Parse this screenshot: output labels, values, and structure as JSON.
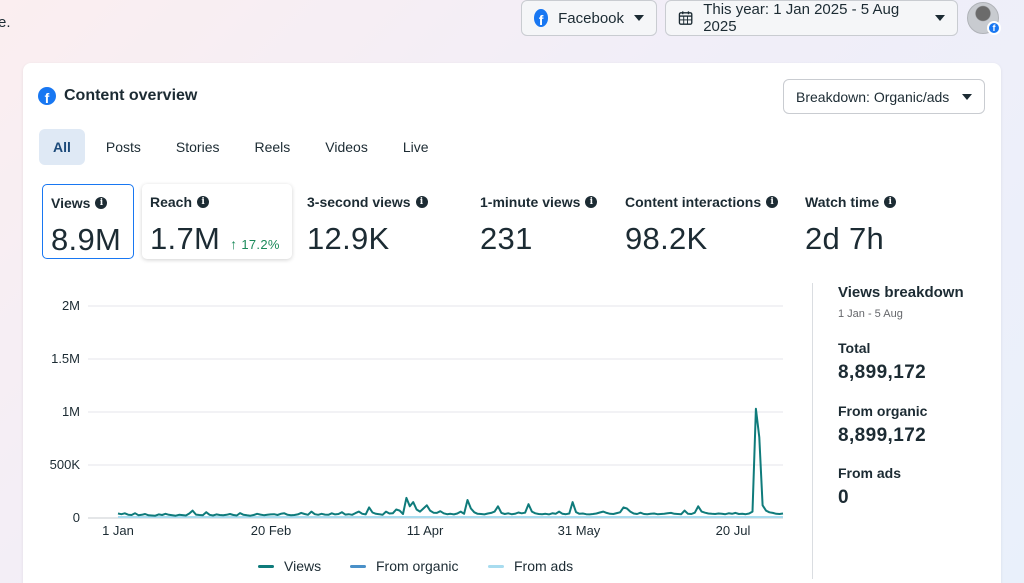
{
  "edge_text": "e.",
  "topbar": {
    "platform": {
      "label": "Facebook",
      "icon": "facebook-icon"
    },
    "date_range": {
      "label": "This year: 1 Jan 2025 - 5 Aug 2025",
      "icon": "calendar-icon"
    },
    "avatar": "profile-avatar"
  },
  "card": {
    "title": "Content overview",
    "breakdown_label": "Breakdown: Organic/ads",
    "tabs": [
      {
        "label": "All",
        "active": true
      },
      {
        "label": "Posts"
      },
      {
        "label": "Stories"
      },
      {
        "label": "Reels"
      },
      {
        "label": "Videos"
      },
      {
        "label": "Live"
      }
    ],
    "metrics": [
      {
        "label": "Views",
        "value": "8.9M"
      },
      {
        "label": "Reach",
        "value": "1.7M",
        "change": "17.2%"
      },
      {
        "label": "3-second views",
        "value": "12.9K"
      },
      {
        "label": "1-minute views",
        "value": "231"
      },
      {
        "label": "Content interactions",
        "value": "98.2K"
      },
      {
        "label": "Watch time",
        "value": "2d 7h"
      }
    ],
    "breakdown": {
      "title": "Views breakdown",
      "range": "1 Jan - 5 Aug",
      "total_label": "Total",
      "total_value": "8,899,172",
      "organic_label": "From organic",
      "organic_value": "8,899,172",
      "ads_label": "From ads",
      "ads_value": "0"
    }
  },
  "colors": {
    "views": "#0f7b7b",
    "organic": "#4a90c8",
    "ads": "#a8dcef",
    "accent": "#1877f2",
    "positive": "#1b8a5a"
  },
  "chart_data": {
    "type": "line",
    "x_tick_labels": [
      "1 Jan",
      "20 Feb",
      "11 Apr",
      "31 May",
      "20 Jul"
    ],
    "y_tick_labels": [
      "0",
      "500K",
      "1M",
      "1.5M",
      "2M"
    ],
    "ylim": [
      0,
      2000000
    ],
    "grid": true,
    "legend_position": "bottom",
    "series": [
      {
        "name": "Views",
        "values": [
          42000,
          36000,
          44000,
          31000,
          28000,
          45000,
          26000,
          30000,
          38000,
          25000,
          24000,
          22000,
          34000,
          28000,
          40000,
          30000,
          26000,
          22000,
          30000,
          27000,
          24000,
          42000,
          70000,
          32000,
          28000,
          26000,
          55000,
          30000,
          24000,
          34000,
          28000,
          26000,
          30000,
          38000,
          28000,
          24000,
          46000,
          30000,
          25000,
          22000,
          28000,
          40000,
          32000,
          26000,
          30000,
          34000,
          36000,
          28000,
          40000,
          44000,
          30000,
          26000,
          28000,
          34000,
          48000,
          38000,
          30000,
          60000,
          36000,
          30000,
          40000,
          32000,
          30000,
          44000,
          34000,
          38000,
          55000,
          32000,
          36000,
          30000,
          46000,
          60000,
          40000,
          34000,
          100000,
          52000,
          40000,
          36000,
          30000,
          60000,
          42000,
          44000,
          80000,
          70000,
          38000,
          190000,
          110000,
          150000,
          80000,
          60000,
          90000,
          120000,
          70000,
          50000,
          48000,
          64000,
          44000,
          36000,
          40000,
          34000,
          42000,
          60000,
          40000,
          170000,
          90000,
          54000,
          40000,
          38000,
          34000,
          42000,
          48000,
          60000,
          110000,
          48000,
          38000,
          44000,
          36000,
          40000,
          52000,
          44000,
          50000,
          130000,
          60000,
          44000,
          38000,
          36000,
          40000,
          34000,
          44000,
          40000,
          60000,
          40000,
          36000,
          42000,
          150000,
          56000,
          40000,
          42000,
          36000,
          34000,
          38000,
          42000,
          52000,
          60000,
          48000,
          40000,
          38000,
          46000,
          54000,
          100000,
          90000,
          60000,
          42000,
          38000,
          50000,
          38000,
          36000,
          40000,
          42000,
          36000,
          38000,
          40000,
          44000,
          48000,
          40000,
          38000,
          36000,
          70000,
          40000,
          38000,
          50000,
          110000,
          60000,
          50000,
          42000,
          40000,
          38000,
          42000,
          40000,
          36000,
          44000,
          40000,
          48000,
          38000,
          40000,
          36000,
          42000,
          60000,
          1030000,
          760000,
          120000,
          70000,
          54000,
          48000,
          40000,
          38000,
          42000
        ]
      },
      {
        "name": "From organic",
        "values": []
      },
      {
        "name": "From ads",
        "values": []
      }
    ]
  }
}
